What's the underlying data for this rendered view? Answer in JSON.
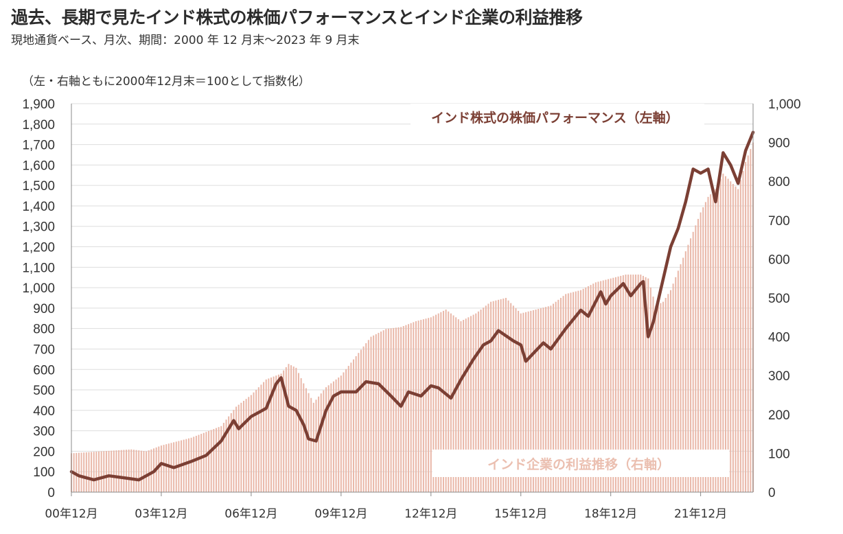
{
  "title": "過去、長期で見たインド株式の株価パフォーマンスとインド企業の利益推移",
  "subtitle": "現地通貨ベース、月次、期間：2000 年 12 月末～2023 年 9 月末",
  "note": "（左・右軸ともに2000年12月末＝100として指数化）",
  "colors": {
    "stock_line": "#7b3f34",
    "profit_bars": "#e9b7a8",
    "grid": "#dddddd"
  },
  "chart_data": {
    "type": "line+bar",
    "x_start": "2000-12",
    "x_end": "2023-09",
    "x_ticks": [
      "00年12月",
      "03年12月",
      "06年12月",
      "09年12月",
      "12年12月",
      "15年12月",
      "18年12月",
      "21年12月"
    ],
    "left_axis": {
      "ylim": [
        0,
        1900
      ],
      "ticks": [
        "0",
        "100",
        "200",
        "300",
        "400",
        "500",
        "600",
        "700",
        "800",
        "900",
        "1,000",
        "1,100",
        "1,200",
        "1,300",
        "1,400",
        "1,500",
        "1,600",
        "1,700",
        "1,800",
        "1,900"
      ]
    },
    "right_axis": {
      "ylim": [
        0,
        1000
      ],
      "ticks": [
        "0",
        "100",
        "200",
        "300",
        "400",
        "500",
        "600",
        "700",
        "800",
        "900",
        "1,000"
      ]
    },
    "grid": true,
    "series": [
      {
        "name": "インド株式の株価パフォーマンス（左軸）",
        "type": "line",
        "axis": "left",
        "points": [
          [
            "2000-12",
            100
          ],
          [
            "2001-03",
            80
          ],
          [
            "2001-09",
            60
          ],
          [
            "2002-03",
            80
          ],
          [
            "2002-09",
            70
          ],
          [
            "2003-03",
            60
          ],
          [
            "2003-09",
            100
          ],
          [
            "2003-12",
            140
          ],
          [
            "2004-05",
            120
          ],
          [
            "2004-12",
            150
          ],
          [
            "2005-06",
            180
          ],
          [
            "2005-12",
            250
          ],
          [
            "2006-05",
            350
          ],
          [
            "2006-07",
            310
          ],
          [
            "2006-12",
            370
          ],
          [
            "2007-06",
            410
          ],
          [
            "2007-10",
            530
          ],
          [
            "2007-12",
            560
          ],
          [
            "2008-03",
            420
          ],
          [
            "2008-06",
            400
          ],
          [
            "2008-09",
            330
          ],
          [
            "2008-11",
            260
          ],
          [
            "2009-02",
            250
          ],
          [
            "2009-06",
            400
          ],
          [
            "2009-09",
            470
          ],
          [
            "2009-12",
            490
          ],
          [
            "2010-06",
            490
          ],
          [
            "2010-10",
            540
          ],
          [
            "2011-03",
            530
          ],
          [
            "2011-08",
            470
          ],
          [
            "2011-12",
            420
          ],
          [
            "2012-03",
            490
          ],
          [
            "2012-08",
            470
          ],
          [
            "2012-12",
            520
          ],
          [
            "2013-03",
            510
          ],
          [
            "2013-08",
            460
          ],
          [
            "2013-12",
            550
          ],
          [
            "2014-05",
            650
          ],
          [
            "2014-09",
            720
          ],
          [
            "2014-12",
            740
          ],
          [
            "2015-03",
            790
          ],
          [
            "2015-09",
            740
          ],
          [
            "2015-12",
            720
          ],
          [
            "2016-02",
            640
          ],
          [
            "2016-09",
            730
          ],
          [
            "2016-12",
            700
          ],
          [
            "2017-06",
            800
          ],
          [
            "2017-12",
            890
          ],
          [
            "2018-03",
            860
          ],
          [
            "2018-08",
            980
          ],
          [
            "2018-10",
            920
          ],
          [
            "2018-12",
            960
          ],
          [
            "2019-05",
            1020
          ],
          [
            "2019-08",
            960
          ],
          [
            "2019-12",
            1020
          ],
          [
            "2020-01",
            1030
          ],
          [
            "2020-03",
            760
          ],
          [
            "2020-05",
            830
          ],
          [
            "2020-08",
            990
          ],
          [
            "2020-12",
            1200
          ],
          [
            "2021-03",
            1290
          ],
          [
            "2021-06",
            1420
          ],
          [
            "2021-09",
            1580
          ],
          [
            "2021-12",
            1560
          ],
          [
            "2022-03",
            1580
          ],
          [
            "2022-06",
            1420
          ],
          [
            "2022-09",
            1660
          ],
          [
            "2022-12",
            1600
          ],
          [
            "2023-03",
            1510
          ],
          [
            "2023-06",
            1670
          ],
          [
            "2023-09",
            1760
          ]
        ]
      },
      {
        "name": "インド企業の利益推移（右軸）",
        "type": "bar",
        "axis": "right",
        "points": [
          [
            "2000-12",
            100
          ],
          [
            "2001-12",
            105
          ],
          [
            "2002-12",
            110
          ],
          [
            "2003-06",
            105
          ],
          [
            "2003-12",
            120
          ],
          [
            "2004-12",
            140
          ],
          [
            "2005-12",
            170
          ],
          [
            "2006-06",
            220
          ],
          [
            "2006-12",
            250
          ],
          [
            "2007-06",
            290
          ],
          [
            "2007-12",
            305
          ],
          [
            "2008-03",
            330
          ],
          [
            "2008-06",
            320
          ],
          [
            "2008-09",
            280
          ],
          [
            "2009-01",
            230
          ],
          [
            "2009-06",
            270
          ],
          [
            "2009-12",
            300
          ],
          [
            "2010-06",
            350
          ],
          [
            "2010-12",
            400
          ],
          [
            "2011-06",
            420
          ],
          [
            "2011-12",
            425
          ],
          [
            "2012-06",
            440
          ],
          [
            "2012-12",
            450
          ],
          [
            "2013-06",
            470
          ],
          [
            "2013-12",
            440
          ],
          [
            "2014-06",
            460
          ],
          [
            "2014-12",
            490
          ],
          [
            "2015-06",
            500
          ],
          [
            "2015-12",
            460
          ],
          [
            "2016-06",
            470
          ],
          [
            "2016-12",
            480
          ],
          [
            "2017-06",
            510
          ],
          [
            "2017-12",
            520
          ],
          [
            "2018-06",
            540
          ],
          [
            "2018-12",
            550
          ],
          [
            "2019-06",
            560
          ],
          [
            "2019-12",
            560
          ],
          [
            "2020-03",
            550
          ],
          [
            "2020-06",
            480
          ],
          [
            "2020-09",
            490
          ],
          [
            "2020-12",
            520
          ],
          [
            "2021-06",
            620
          ],
          [
            "2021-12",
            720
          ],
          [
            "2022-03",
            760
          ],
          [
            "2022-06",
            780
          ],
          [
            "2022-09",
            820
          ],
          [
            "2022-12",
            800
          ],
          [
            "2023-03",
            780
          ],
          [
            "2023-06",
            850
          ],
          [
            "2023-09",
            900
          ]
        ]
      }
    ]
  }
}
